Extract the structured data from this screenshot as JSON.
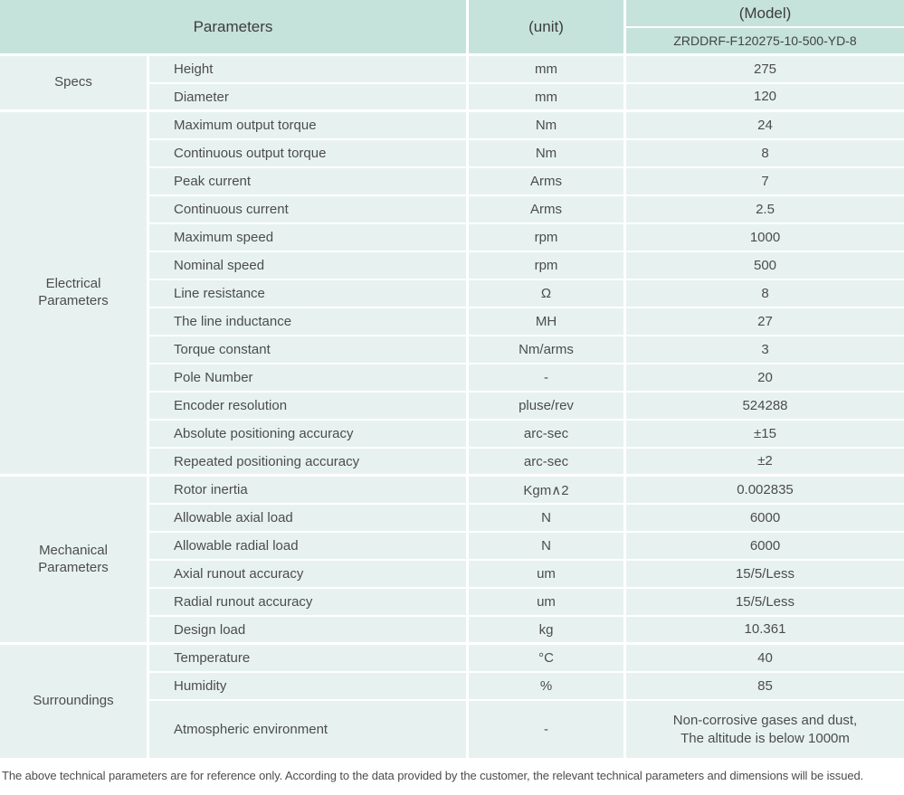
{
  "table": {
    "header": {
      "parameters_label": "Parameters",
      "unit_label": "(unit)",
      "model_label": "(Model)",
      "model_value": "ZRDDRF-F120275-10-500-YD-8"
    },
    "sections": [
      {
        "group": "Specs",
        "rows": [
          {
            "param": "Height",
            "unit": "mm",
            "value": "275"
          },
          {
            "param": "Diameter",
            "unit": "mm",
            "value": "120"
          }
        ]
      },
      {
        "group": "Electrical\nParameters",
        "rows": [
          {
            "param": "Maximum output torque",
            "unit": "Nm",
            "value": "24"
          },
          {
            "param": "Continuous output torque",
            "unit": "Nm",
            "value": "8"
          },
          {
            "param": "Peak current",
            "unit": "Arms",
            "value": "7"
          },
          {
            "param": "Continuous current",
            "unit": "Arms",
            "value": "2.5"
          },
          {
            "param": "Maximum speed",
            "unit": "rpm",
            "value": "1000"
          },
          {
            "param": "Nominal speed",
            "unit": "rpm",
            "value": "500"
          },
          {
            "param": "Line resistance",
            "unit": "Ω",
            "value": "8"
          },
          {
            "param": "The line inductance",
            "unit": "MH",
            "value": "27"
          },
          {
            "param": "Torque constant",
            "unit": "Nm/arms",
            "value": "3"
          },
          {
            "param": "Pole Number",
            "unit": "-",
            "value": "20"
          },
          {
            "param": "Encoder resolution",
            "unit": "pluse/rev",
            "value": "524288"
          },
          {
            "param": "Absolute positioning accuracy",
            "unit": "arc-sec",
            "value": "±15"
          },
          {
            "param": "Repeated positioning accuracy",
            "unit": "arc-sec",
            "value": "±2"
          }
        ]
      },
      {
        "group": "Mechanical\nParameters",
        "rows": [
          {
            "param": "Rotor inertia",
            "unit": "Kgm∧2",
            "value": "0.002835"
          },
          {
            "param": "Allowable axial load",
            "unit": "N",
            "value": "6000"
          },
          {
            "param": "Allowable radial load",
            "unit": "N",
            "value": "6000"
          },
          {
            "param": "Axial runout accuracy",
            "unit": "um",
            "value": "15/5/Less"
          },
          {
            "param": "Radial runout accuracy",
            "unit": "um",
            "value": "15/5/Less"
          },
          {
            "param": "Design load",
            "unit": "kg",
            "value": "10.361"
          }
        ]
      },
      {
        "group": "Surroundings",
        "rows": [
          {
            "param": "Temperature",
            "unit": "°C",
            "value": "40"
          },
          {
            "param": "Humidity",
            "unit": "%",
            "value": "85"
          },
          {
            "param": "Atmospheric environment",
            "unit": "-",
            "value": "Non-corrosive gases and dust,\nThe altitude is below 1000m"
          }
        ]
      }
    ]
  },
  "footer": {
    "note": "The above technical parameters are for reference only. According to the data provided by the customer, the relevant technical parameters and dimensions will be issued."
  },
  "colors": {
    "header_bg": "#c5e2db",
    "cell_bg": "#e7f2f0",
    "border": "#ffffff",
    "text": "#4a4a4a"
  }
}
